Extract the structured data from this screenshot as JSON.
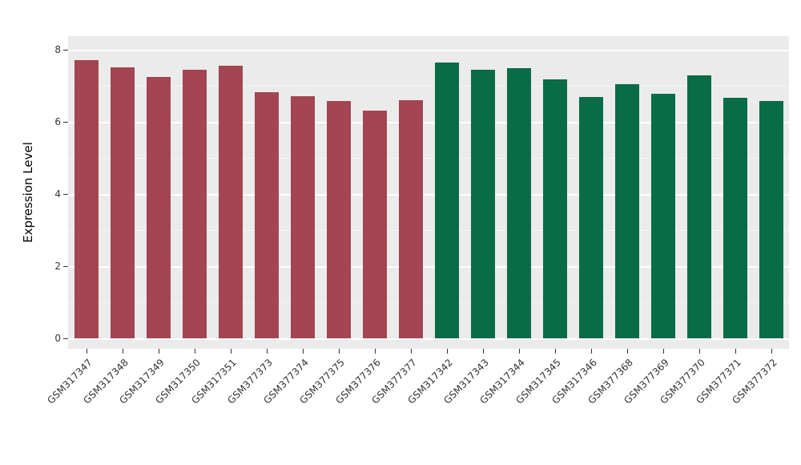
{
  "chart_data": {
    "type": "bar",
    "title": "",
    "xlabel": "",
    "ylabel": "Expression Level",
    "ylim": [
      0,
      8
    ],
    "yticks": [
      0,
      2,
      4,
      6,
      8
    ],
    "grid": "on",
    "legend": "none",
    "panel_background": "#EBEBEB",
    "gridline_color": "#FFFFFF",
    "categories": [
      "GSM317347",
      "GSM317348",
      "GSM317349",
      "GSM317350",
      "GSM317351",
      "GSM377373",
      "GSM377374",
      "GSM377375",
      "GSM377376",
      "GSM377377",
      "GSM317342",
      "GSM317343",
      "GSM317344",
      "GSM317345",
      "GSM317346",
      "GSM377368",
      "GSM377369",
      "GSM377370",
      "GSM377371",
      "GSM377372"
    ],
    "values": [
      7.72,
      7.52,
      7.25,
      7.45,
      7.55,
      6.82,
      6.72,
      6.57,
      6.32,
      6.6,
      7.65,
      7.45,
      7.48,
      7.17,
      6.7,
      7.05,
      6.77,
      7.3,
      6.66,
      6.57
    ],
    "colors": [
      "#A34552",
      "#A34552",
      "#A34552",
      "#A34552",
      "#A34552",
      "#A34552",
      "#A34552",
      "#A34552",
      "#A34552",
      "#A34552",
      "#0A6B47",
      "#0A6B47",
      "#0A6B47",
      "#0A6B47",
      "#0A6B47",
      "#0A6B47",
      "#0A6B47",
      "#0A6B47",
      "#0A6B47",
      "#0A6B47"
    ]
  }
}
